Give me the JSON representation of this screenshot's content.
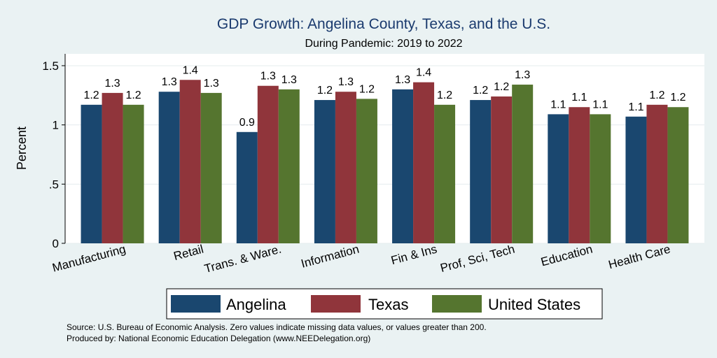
{
  "chart_data": {
    "type": "bar",
    "title": "GDP Growth: Angelina County, Texas, and the U.S.",
    "subtitle": "During Pandemic: 2019 to 2022",
    "ylabel": "Percent",
    "xlabel": "",
    "ylim": [
      0,
      1.6
    ],
    "yticks": [
      0,
      0.5,
      1,
      1.5
    ],
    "ytick_labels": [
      "0",
      ".5",
      "1",
      "1.5"
    ],
    "grid": true,
    "legend_position": "bottom",
    "categories": [
      "Manufacturing",
      "Retail",
      "Trans. & Ware.",
      "Information",
      "Fin & Ins",
      "Prof, Sci, Tech",
      "Education",
      "Health Care"
    ],
    "series": [
      {
        "name": "Angelina",
        "color": "#1a476f",
        "values": [
          1.17,
          1.28,
          0.94,
          1.21,
          1.3,
          1.21,
          1.09,
          1.07
        ],
        "labels": [
          "1.2",
          "1.3",
          "0.9",
          "1.2",
          "1.3",
          "1.2",
          "1.1",
          "1.1"
        ]
      },
      {
        "name": "Texas",
        "color": "#90353b",
        "values": [
          1.27,
          1.38,
          1.33,
          1.28,
          1.36,
          1.24,
          1.15,
          1.17
        ],
        "labels": [
          "1.3",
          "1.4",
          "1.3",
          "1.3",
          "1.4",
          "1.2",
          "1.1",
          "1.2"
        ]
      },
      {
        "name": "United States",
        "color": "#55752f",
        "values": [
          1.17,
          1.27,
          1.3,
          1.22,
          1.17,
          1.34,
          1.09,
          1.15
        ],
        "labels": [
          "1.2",
          "1.3",
          "1.3",
          "1.2",
          "1.2",
          "1.3",
          "1.1",
          "1.2"
        ]
      }
    ],
    "source_lines": [
      "Source: U.S. Bureau of Economic Analysis. Zero values indicate missing data values, or values greater than 200.",
      "Produced by: National Economic Education Delegation (www.NEEDelegation.org)"
    ]
  }
}
